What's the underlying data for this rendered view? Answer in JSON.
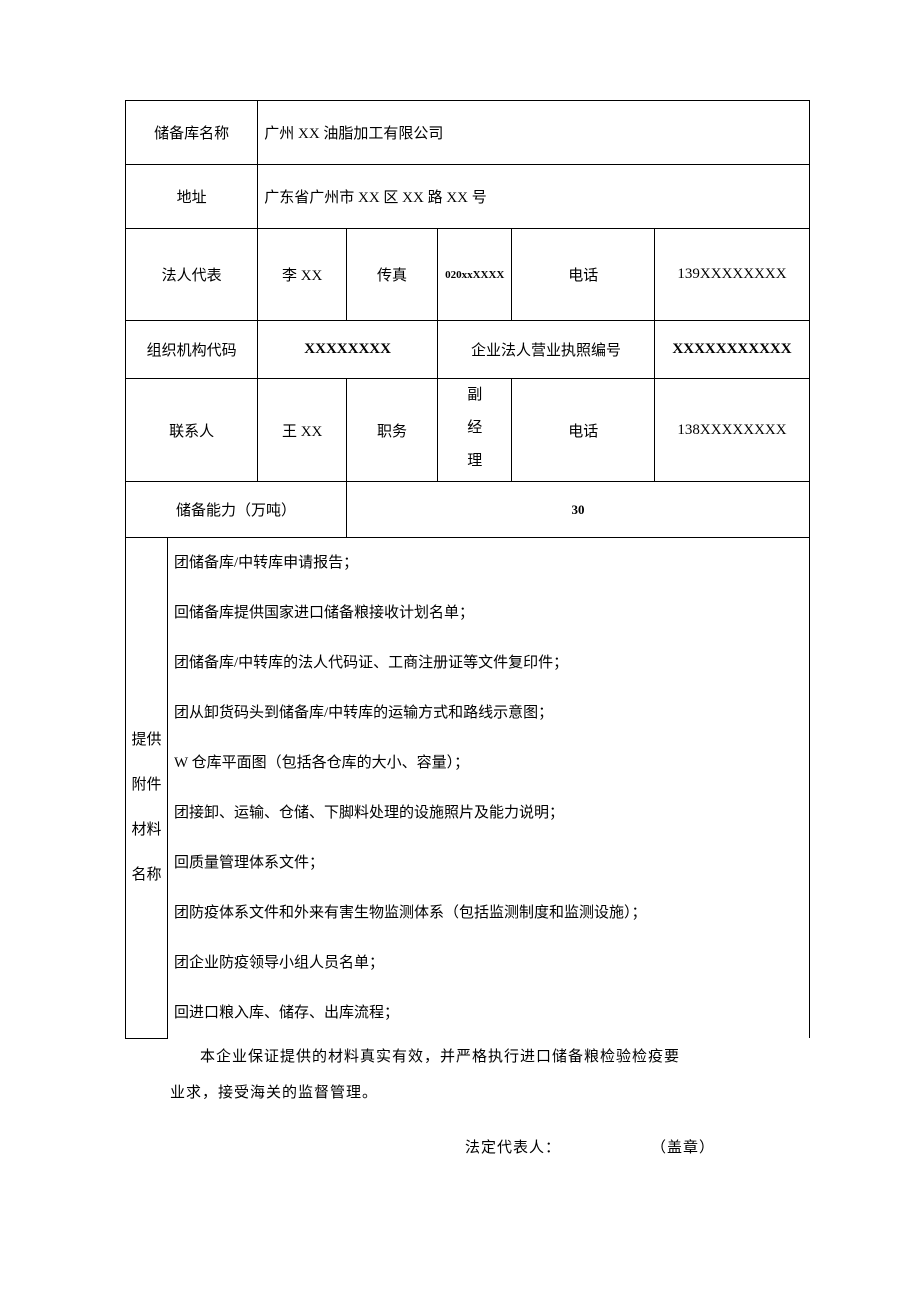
{
  "row1": {
    "label": "储备库名称",
    "value": "广州 XX 油脂加工有限公司"
  },
  "row2": {
    "label": "地址",
    "value": "广东省广州市 XX 区 XX 路 XX 号"
  },
  "row3": {
    "label": "法人代表",
    "value": "李 XX",
    "fax_label": "传真",
    "fax_value": "020xxXXXX",
    "phone_label": "电话",
    "phone_value": "139XXXXXXXX"
  },
  "row4": {
    "label": "组织机构代码",
    "value": "XXXXXXXX",
    "lic_label": "企业法人营业执照编号",
    "lic_value": "XXXXXXXXXXX"
  },
  "row5": {
    "label": "联系人",
    "value": "王 XX",
    "pos_label": "职务",
    "pos_value": "副经理",
    "phone_label": "电话",
    "phone_value": "138XXXXXXXX"
  },
  "row6": {
    "label": "储备能力（万吨）",
    "value": "30"
  },
  "attach": {
    "label_l1": "提供",
    "label_l2": "附件",
    "label_l3": "材料",
    "label_l4": "名称",
    "items": [
      "团储备库/中转库申请报告；",
      "回储备库提供国家进口储备粮接收计划名单；",
      "团储备库/中转库的法人代码证、工商注册证等文件复印件；",
      "团从卸货码头到储备库/中转库的运输方式和路线示意图；",
      "W 仓库平面图（包括各仓库的大小、容量）；",
      "团接卸、运输、仓储、下脚料处理的设施照片及能力说明；",
      "回质量管理体系文件；",
      "团防疫体系文件和外来有害生物监测体系（包括监测制度和监测设施）；",
      "团企业防疫领导小组人员名单；",
      "回进口粮入库、储存、出库流程；"
    ]
  },
  "declaration": {
    "line1_pre": "",
    "line1": "本企业保证提供的材料真实有效，并严格执行进口储备粮检验检疫要",
    "line2_pre": "业",
    "line2": "求，接受海关的监督管理。"
  },
  "signature": {
    "label": "法定代表人：",
    "stamp": "（盖章）"
  }
}
